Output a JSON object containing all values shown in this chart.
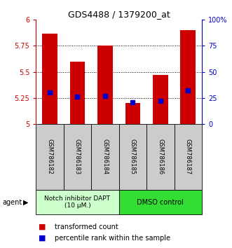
{
  "title": "GDS4488 / 1379200_at",
  "samples": [
    "GSM786182",
    "GSM786183",
    "GSM786184",
    "GSM786185",
    "GSM786186",
    "GSM786187"
  ],
  "bar_values": [
    5.87,
    5.6,
    5.75,
    5.2,
    5.47,
    5.9
  ],
  "percentile_values": [
    30,
    26,
    27,
    21,
    22,
    32
  ],
  "ylim_left": [
    5.0,
    6.0
  ],
  "ylim_right": [
    0,
    100
  ],
  "yticks_left": [
    5.0,
    5.25,
    5.5,
    5.75,
    6.0
  ],
  "ytick_labels_left": [
    "5",
    "5.25",
    "5.5",
    "5.75",
    "6"
  ],
  "yticks_right": [
    0,
    25,
    50,
    75,
    100
  ],
  "ytick_labels_right": [
    "0",
    "25",
    "50",
    "75",
    "100%"
  ],
  "bar_color": "#cc0000",
  "dot_color": "#0000cc",
  "bar_width": 0.55,
  "grid_lines": [
    5.25,
    5.5,
    5.75
  ],
  "group1_label": "Notch inhibitor DAPT\n(10 μM.)",
  "group2_label": "DMSO control",
  "group1_indices": [
    0,
    1,
    2
  ],
  "group2_indices": [
    3,
    4,
    5
  ],
  "group1_color": "#ccffcc",
  "group2_color": "#33dd33",
  "agent_label": "agent",
  "legend_bar_label": "transformed count",
  "legend_dot_label": "percentile rank within the sample",
  "bg_color": "#ffffff",
  "sample_box_color": "#cccccc",
  "title_fontsize": 9,
  "tick_fontsize": 7,
  "legend_fontsize": 7
}
